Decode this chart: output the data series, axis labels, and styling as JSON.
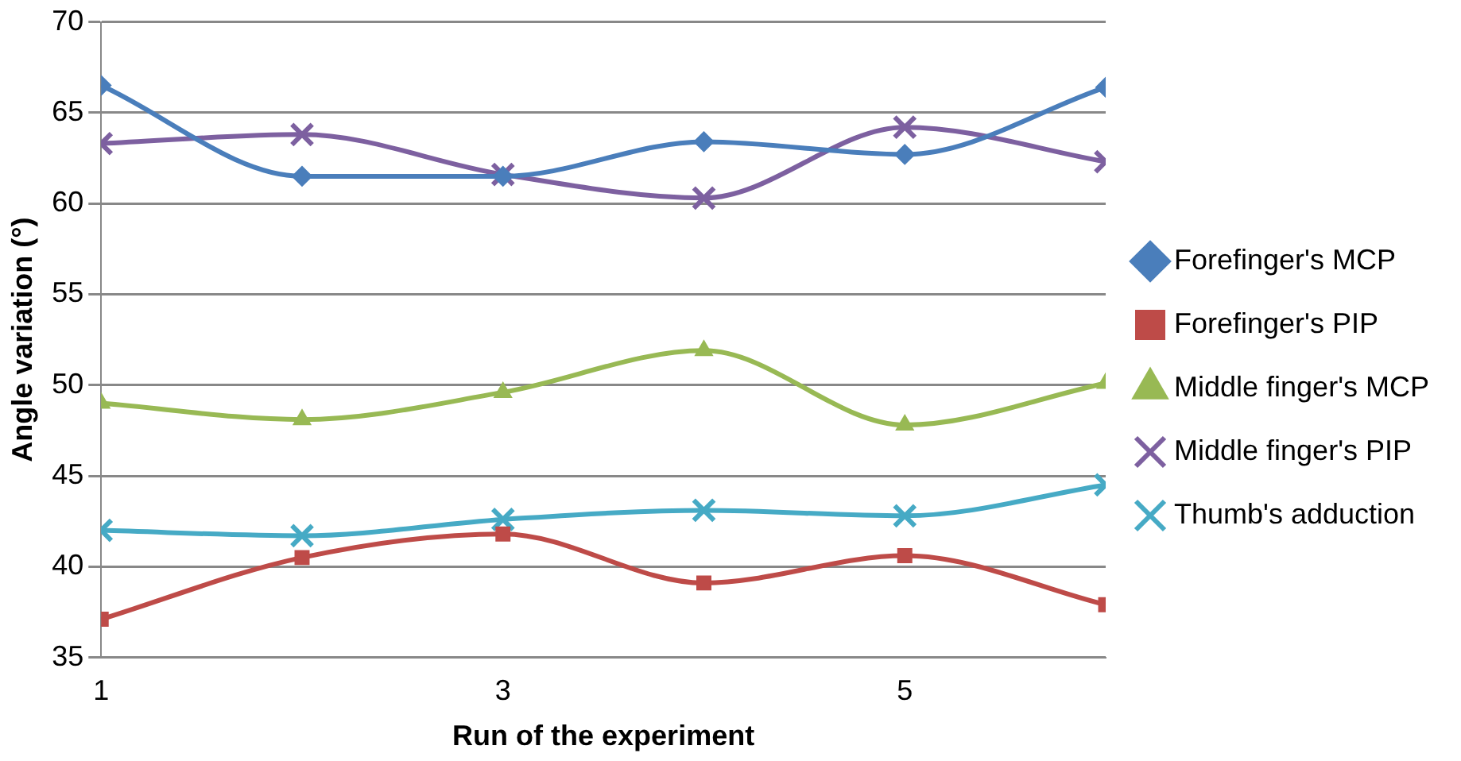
{
  "chart_data": {
    "type": "line",
    "xlabel": "Run of the experiment",
    "ylabel": "Angle variation (°)",
    "x": [
      1,
      2,
      3,
      4,
      5,
      6
    ],
    "xlim": [
      1,
      6
    ],
    "xticks": [
      1,
      3,
      5
    ],
    "ylim": [
      35,
      70
    ],
    "yticks": [
      35,
      40,
      45,
      50,
      55,
      60,
      65,
      70
    ],
    "grid": "y",
    "legend": "right",
    "series": [
      {
        "name": "Forefinger's MCP",
        "color": "#4a7ebb",
        "marker": "diamond",
        "values": [
          66.5,
          61.5,
          61.5,
          63.4,
          62.7,
          66.4
        ]
      },
      {
        "name": "Forefinger's PIP",
        "color": "#be4b48",
        "marker": "square",
        "values": [
          37.1,
          40.5,
          41.8,
          39.1,
          40.6,
          37.9
        ]
      },
      {
        "name": "Middle finger's MCP",
        "color": "#98b954",
        "marker": "triangle",
        "values": [
          49.0,
          48.1,
          49.6,
          51.9,
          47.8,
          50.1
        ]
      },
      {
        "name": "Middle finger's PIP",
        "color": "#7d60a0",
        "marker": "cross",
        "values": [
          63.3,
          63.8,
          61.6,
          60.3,
          64.2,
          62.3
        ]
      },
      {
        "name": "Thumb's adduction",
        "color": "#46aac5",
        "marker": "cross",
        "values": [
          42.0,
          41.7,
          42.6,
          43.1,
          42.8,
          44.5
        ]
      }
    ]
  }
}
